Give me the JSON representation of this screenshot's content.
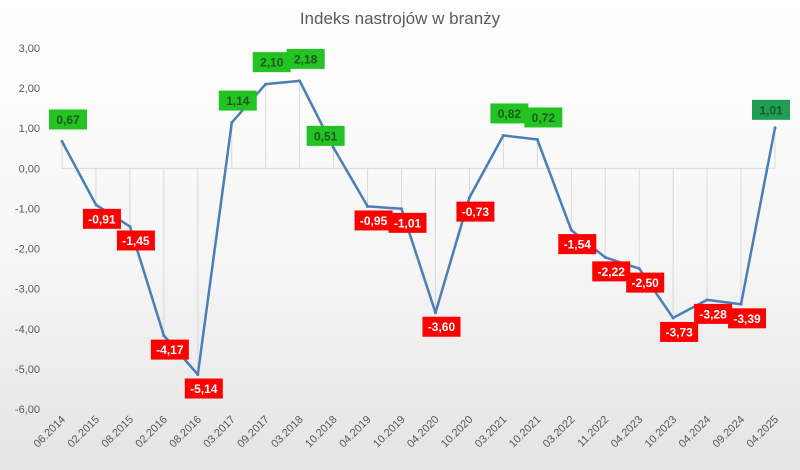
{
  "chart_data": {
    "type": "line",
    "title": "Indeks nastrojów  w branży",
    "xlabel": "",
    "ylabel": "",
    "ylim": [
      -6,
      3
    ],
    "y_ticks": [
      "3,00",
      "2,00",
      "1,00",
      "0,00",
      "-1,00",
      "-2,00",
      "-3,00",
      "-4,00",
      "-5,00",
      "-6,00"
    ],
    "y_tick_values": [
      3,
      2,
      1,
      0,
      -1,
      -2,
      -3,
      -4,
      -5,
      -6
    ],
    "grid": "vertical drop lines",
    "legend": "none",
    "colors": {
      "line": "#4a7ebb",
      "positive_label_bg": "#22c322",
      "positive_label_text": "#1f5a1f",
      "negative_label_bg": "#ff0000",
      "negative_label_text": "#ffffff",
      "last_label_bg": "#1f9e57",
      "axis_text": "#595959",
      "gridline": "#d9d9d9"
    },
    "x_tick_labels": [
      "06.2014",
      "02.2015",
      "08.2015",
      "02.2016",
      "08.2016",
      "03.2017",
      "09.2017",
      "03.2018",
      "10.2018",
      "04.2019",
      "10.2019",
      "04.2020",
      "10.2020",
      "03.2021",
      "10.2021",
      "03.2022",
      "11.2022",
      "04.2023",
      "10.2023",
      "04.2024",
      "09.2024",
      "04.2025"
    ],
    "series": [
      {
        "values": [
          0.67,
          -0.91,
          -1.45,
          -4.17,
          -5.14,
          1.14,
          2.1,
          2.18,
          0.51,
          -0.95,
          -1.01,
          -3.6,
          -0.73,
          0.82,
          0.72,
          -1.54,
          -2.22,
          -2.5,
          -3.73,
          -3.28,
          -3.39,
          1.01
        ],
        "labels": [
          "0,67",
          "-0,91",
          "-1,45",
          "-4,17",
          "-5,14",
          "1,14",
          "2,10",
          "2,18",
          "0,51",
          "-0,95",
          "-1,01",
          "-3,60",
          "-0,73",
          "0,82",
          "0,72",
          "-1,54",
          "-2,22",
          "-2,50",
          "-3,73",
          "-3,28",
          "-3,39",
          "1,01"
        ]
      }
    ]
  }
}
